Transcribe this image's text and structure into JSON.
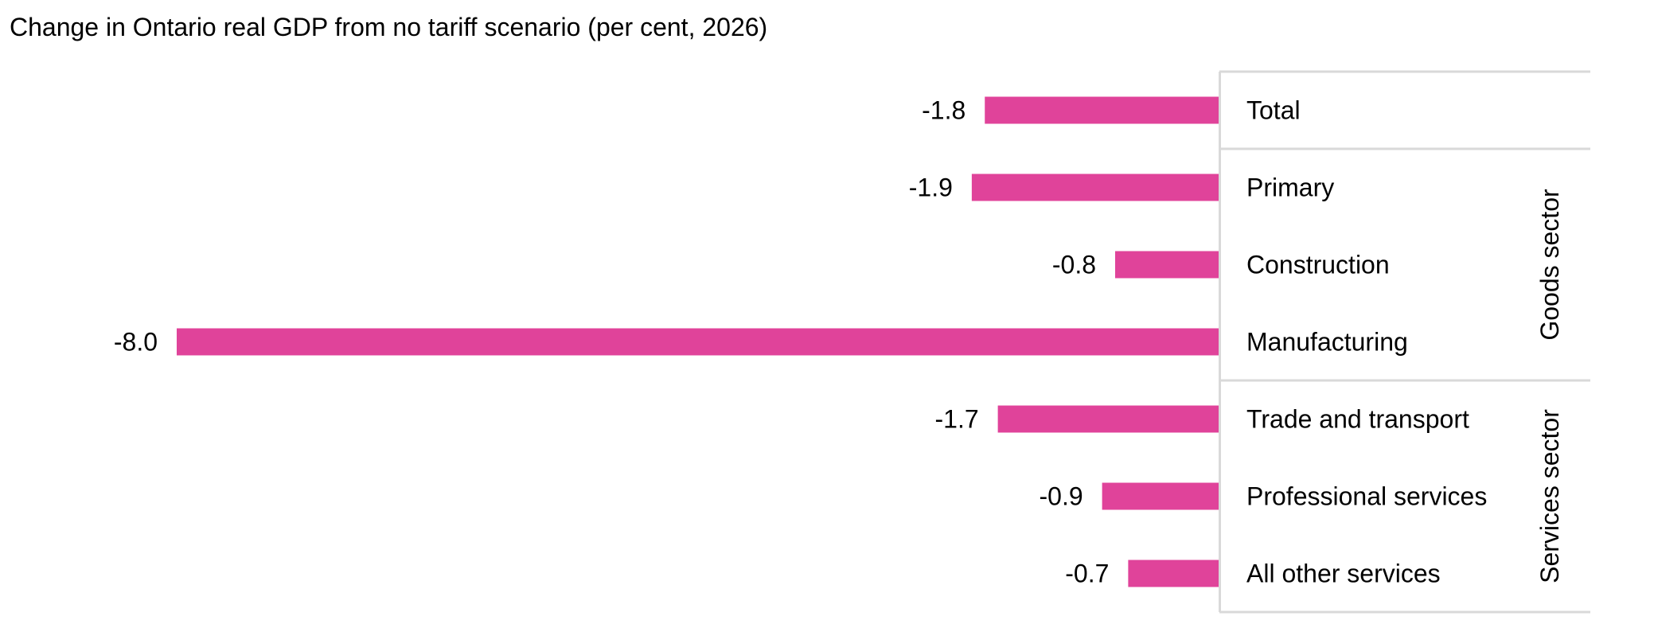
{
  "chart_data": {
    "type": "bar",
    "orientation": "horizontal",
    "title": "Change in Ontario real GDP from no tariff scenario (per cent, 2026)",
    "xlabel": "",
    "ylabel": "",
    "xlim": [
      -8.0,
      0
    ],
    "grid": false,
    "bar_color": "#E0439A",
    "categories": [
      "Total",
      "Primary",
      "Construction",
      "Manufacturing",
      "Trade and transport",
      "Professional services",
      "All other services"
    ],
    "values": [
      -1.8,
      -1.9,
      -0.8,
      -8.0,
      -1.7,
      -0.9,
      -0.7
    ],
    "data_labels": [
      "-1.8",
      "-1.9",
      "-0.8",
      "-8.0",
      "-1.7",
      "-0.9",
      "-0.7"
    ],
    "groups": [
      {
        "name": "Goods sector",
        "members": [
          "Primary",
          "Construction",
          "Manufacturing"
        ]
      },
      {
        "name": "Services sector",
        "members": [
          "Trade and transport",
          "Professional services",
          "All other services"
        ]
      }
    ]
  }
}
